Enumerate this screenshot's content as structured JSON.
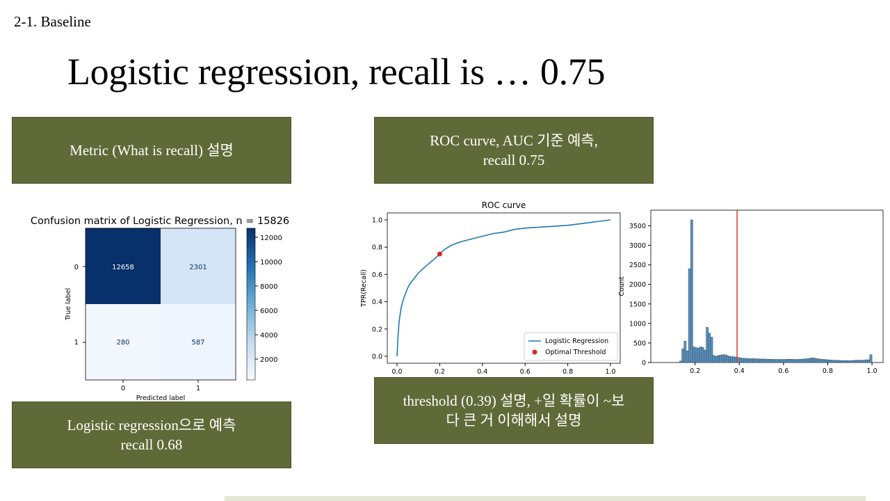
{
  "section_label": "2-1. Baseline",
  "title": "Logistic regression, recall is … 0.75",
  "notes": {
    "metric": "Metric (What is recall) 설명",
    "roc_line1": "ROC curve, AUC 기준 예측,",
    "roc_line2": "recall 0.75",
    "logreg_line1": "Logistic regression으로 예측",
    "logreg_line2": "recall 0.68",
    "threshold_line1": "threshold (0.39) 설명, +일 확률이 ~보",
    "threshold_line2": "다 큰 거 이해해서 설명"
  },
  "confusion_matrix": {
    "title": "Confusion matrix of Logistic Regression, n = 15826",
    "xlabel": "Predicted label",
    "ylabel": "True label",
    "row_labels": [
      "0",
      "1"
    ],
    "col_labels": [
      "0",
      "1"
    ],
    "cells": [
      [
        "12658",
        "2301"
      ],
      [
        "280",
        "587"
      ]
    ],
    "colorbar_ticks": [
      "12000",
      "10000",
      "8000",
      "6000",
      "4000",
      "2000"
    ]
  },
  "chart_data": [
    {
      "type": "line",
      "title": "ROC curve",
      "xlabel": "",
      "ylabel": "TPR(Recall)",
      "xlim": [
        0,
        1
      ],
      "ylim": [
        0,
        1
      ],
      "xticks": [
        "0.0",
        "0.2",
        "0.4",
        "0.6",
        "0.8",
        "1.0"
      ],
      "yticks": [
        "0.0",
        "0.2",
        "0.4",
        "0.6",
        "0.8",
        "1.0"
      ],
      "legend_position": "bottom-right",
      "series": [
        {
          "name": "Logistic Regression",
          "color": "#1f77b4",
          "x": [
            0,
            0.005,
            0.01,
            0.02,
            0.03,
            0.04,
            0.05,
            0.06,
            0.08,
            0.1,
            0.12,
            0.15,
            0.18,
            0.2,
            0.22,
            0.25,
            0.28,
            0.3,
            0.35,
            0.4,
            0.45,
            0.5,
            0.55,
            0.6,
            0.65,
            0.7,
            0.75,
            0.8,
            0.85,
            0.9,
            0.95,
            1.0
          ],
          "y": [
            0.0,
            0.15,
            0.26,
            0.36,
            0.42,
            0.46,
            0.5,
            0.53,
            0.57,
            0.61,
            0.64,
            0.68,
            0.72,
            0.75,
            0.78,
            0.81,
            0.83,
            0.84,
            0.86,
            0.88,
            0.9,
            0.91,
            0.93,
            0.94,
            0.945,
            0.95,
            0.955,
            0.96,
            0.97,
            0.98,
            0.99,
            1.0
          ]
        }
      ],
      "markers": [
        {
          "name": "Optimal Threshold",
          "color": "#d62728",
          "x": 0.2,
          "y": 0.75
        }
      ]
    },
    {
      "type": "bar",
      "title": "",
      "xlabel": "",
      "ylabel": "Count",
      "xlim": [
        0,
        1.05
      ],
      "ylim": [
        0,
        3900
      ],
      "xticks": [
        "0.2",
        "0.4",
        "0.6",
        "0.8",
        "1.0"
      ],
      "yticks": [
        "0",
        "500",
        "1000",
        "1500",
        "2000",
        "2500",
        "3000",
        "3500"
      ],
      "bar_color": "#5b8fb8",
      "bin_width": 0.01,
      "bin_starts": [
        0.13,
        0.14,
        0.15,
        0.16,
        0.17,
        0.18,
        0.19,
        0.2,
        0.21,
        0.22,
        0.23,
        0.24,
        0.25,
        0.26,
        0.27,
        0.28,
        0.29,
        0.3,
        0.31,
        0.32,
        0.33,
        0.34,
        0.35,
        0.36,
        0.37,
        0.38,
        0.39
      ],
      "counts": [
        40,
        350,
        550,
        300,
        2400,
        3650,
        400,
        380,
        370,
        400,
        390,
        320,
        900,
        750,
        650,
        180,
        160,
        180,
        190,
        200,
        200,
        180,
        160,
        150,
        150,
        140,
        130
      ],
      "tail_start": 0.4,
      "tail_end": 1.0,
      "tail_counts": [
        120,
        110,
        110,
        100,
        100,
        100,
        100,
        95,
        95,
        90,
        90,
        90,
        85,
        85,
        85,
        80,
        80,
        80,
        80,
        80,
        80,
        85,
        85,
        85,
        80,
        80,
        80,
        85,
        90,
        95,
        100,
        110,
        120,
        110,
        100,
        90,
        85,
        80,
        75,
        70,
        65,
        60,
        60,
        55,
        55,
        50,
        50,
        50,
        50,
        50,
        50,
        60,
        60,
        60,
        60,
        60,
        70,
        70,
        200
      ],
      "threshold": {
        "value": 0.39,
        "color": "#d62728"
      }
    }
  ]
}
